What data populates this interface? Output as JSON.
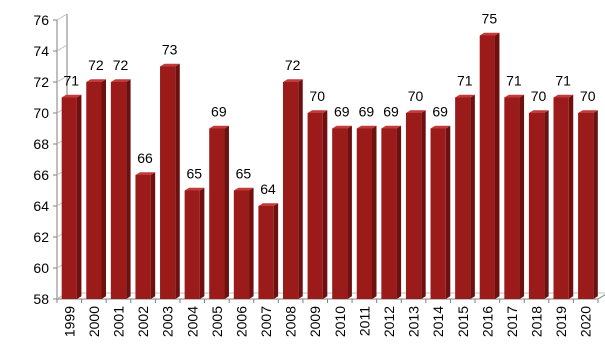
{
  "chart_data": {
    "type": "bar",
    "categories": [
      "1999",
      "2000",
      "2001",
      "2002",
      "2003",
      "2004",
      "2005",
      "2006",
      "2007",
      "2008",
      "2009",
      "2010",
      "2011",
      "2012",
      "2013",
      "2014",
      "2015",
      "2016",
      "2017",
      "2018",
      "2019",
      "2020"
    ],
    "values": [
      71,
      72,
      72,
      66,
      73,
      65,
      69,
      65,
      64,
      72,
      70,
      69,
      69,
      69,
      70,
      69,
      71,
      75,
      71,
      70,
      71,
      70
    ],
    "ylim": [
      58,
      76
    ],
    "yticks": [
      58,
      60,
      62,
      64,
      66,
      68,
      70,
      72,
      74,
      76
    ],
    "grid": false,
    "bar_color": "#9b1b1b",
    "bar_side_color": "#6e1010",
    "bar_top_color": "#c23a3a",
    "title": "",
    "xlabel": "",
    "ylabel": ""
  }
}
